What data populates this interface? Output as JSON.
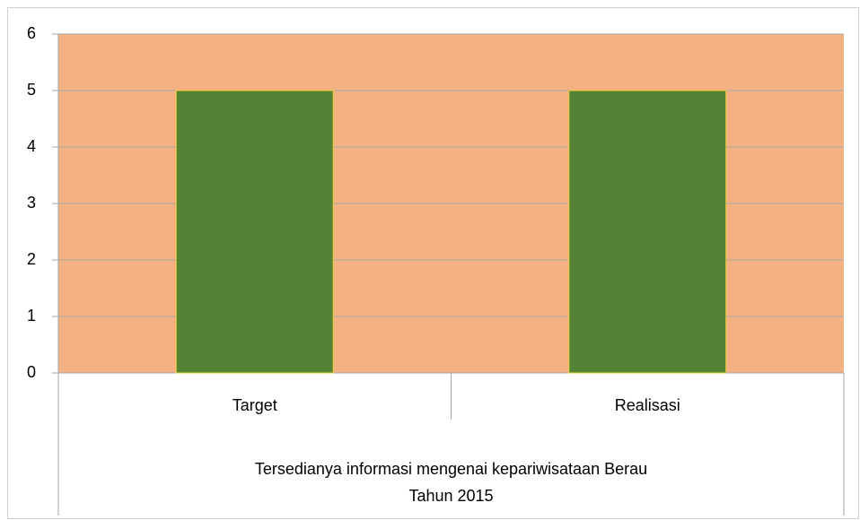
{
  "chart_data": {
    "type": "bar",
    "categories": [
      "Target",
      "Realisasi"
    ],
    "values": [
      5,
      5
    ],
    "group_labels": [
      "Tersedianya informasi mengenai kepariwisataan Berau",
      "Tahun 2015"
    ],
    "color": "#548235",
    "edge_color": "#f2d43a",
    "plot_background": "#f4b183",
    "ylim": [
      0,
      6
    ],
    "yticks": [
      0,
      1,
      2,
      3,
      4,
      5,
      6
    ],
    "grid": true
  }
}
